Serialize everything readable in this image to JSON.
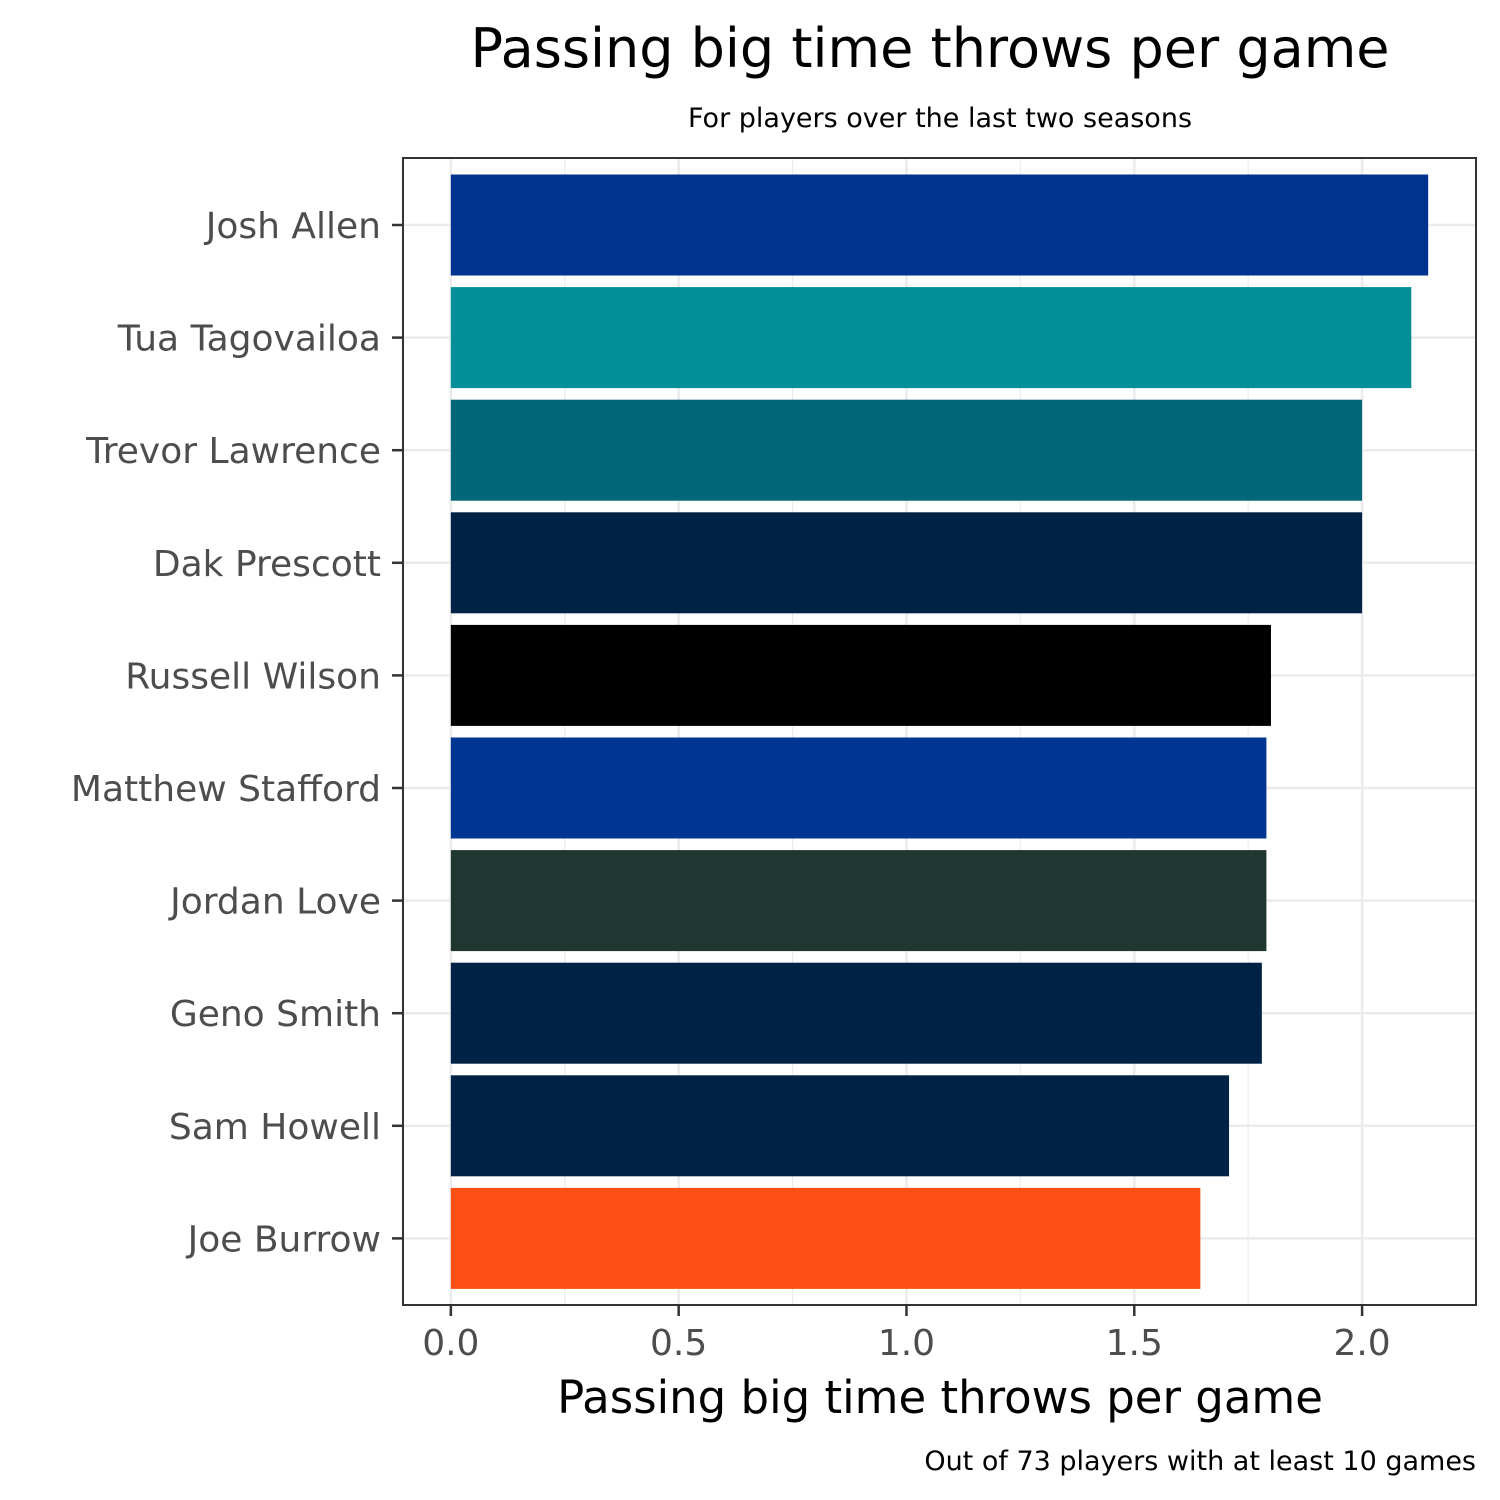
{
  "chart_data": {
    "type": "bar",
    "orientation": "horizontal",
    "title": "Passing big time throws per game",
    "subtitle": "For players over the last two seasons",
    "xlabel": "Passing big time throws per game",
    "ylabel": "",
    "caption": "Out of 73 players with at least 10 games",
    "xlim": [
      -0.105,
      2.25
    ],
    "xticks": [
      0.0,
      0.5,
      1.0,
      1.5,
      2.0
    ],
    "xtick_labels": [
      "0.0",
      "0.5",
      "1.0",
      "1.5",
      "2.0"
    ],
    "grid": true,
    "legend": "none",
    "categories": [
      "Josh Allen",
      "Tua Tagovailoa",
      "Trevor Lawrence",
      "Dak Prescott",
      "Russell Wilson",
      "Matthew Stafford",
      "Jordan Love",
      "Geno Smith",
      "Sam Howell",
      "Joe Burrow"
    ],
    "values": [
      2.145,
      2.108,
      2.0,
      2.0,
      1.8,
      1.79,
      1.79,
      1.78,
      1.708,
      1.645
    ],
    "colors": [
      "#00338D",
      "#008E97",
      "#006778",
      "#002244",
      "#000000",
      "#003594",
      "#203731",
      "#002244",
      "#002244",
      "#FB4F14"
    ]
  }
}
